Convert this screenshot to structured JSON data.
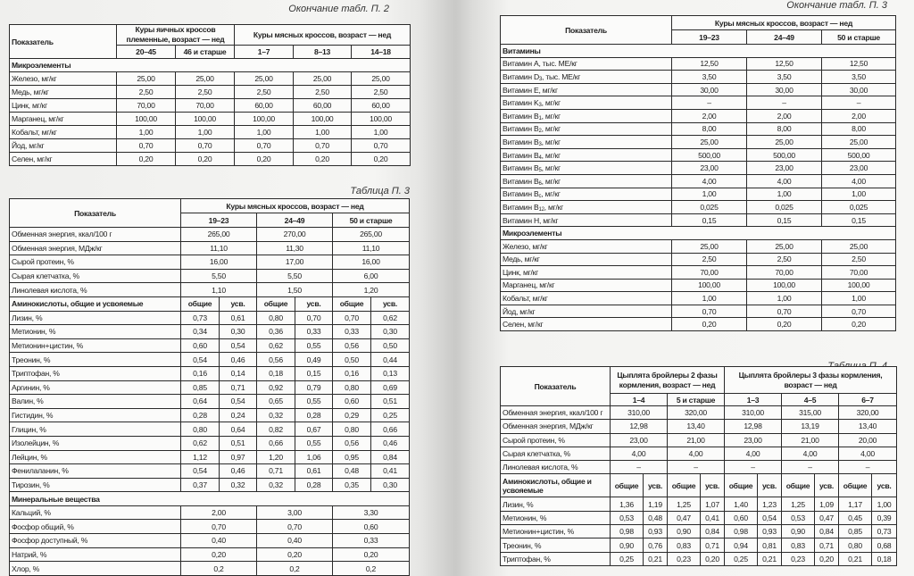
{
  "left_top": {
    "caption": "Окончание табл. П. 2",
    "header": {
      "col_label": "Показатель",
      "group1": "Куры яичных кроссов племенные, возраст — нед",
      "group2": "Куры мясных кроссов, возраст — нед",
      "ages": [
        "20–45",
        "46 и старше",
        "1–7",
        "8–13",
        "14–18"
      ]
    },
    "rows": [
      {
        "section": "Микроэлементы"
      },
      {
        "label": "Железо, мг/кг",
        "values": [
          "25,00",
          "25,00",
          "25,00",
          "25,00",
          "25,00"
        ]
      },
      {
        "label": "Медь, мг/кг",
        "values": [
          "2,50",
          "2,50",
          "2,50",
          "2,50",
          "2,50"
        ]
      },
      {
        "label": "Цинк, мг/кг",
        "values": [
          "70,00",
          "70,00",
          "60,00",
          "60,00",
          "60,00"
        ]
      },
      {
        "label": "Марганец, мг/кг",
        "values": [
          "100,00",
          "100,00",
          "100,00",
          "100,00",
          "100,00"
        ]
      },
      {
        "label": "Кобальт, мг/кг",
        "values": [
          "1,00",
          "1,00",
          "1,00",
          "1,00",
          "1,00"
        ]
      },
      {
        "label": "Йод, мг/кг",
        "values": [
          "0,70",
          "0,70",
          "0,70",
          "0,70",
          "0,70"
        ]
      },
      {
        "label": "Селен, мг/кг",
        "values": [
          "0,20",
          "0,20",
          "0,20",
          "0,20",
          "0,20"
        ]
      }
    ]
  },
  "left_bottom": {
    "caption": "Таблица П. 3",
    "header": {
      "col_label": "Показатель",
      "group": "Куры мясных кроссов, возраст — нед",
      "ages": [
        "19–23",
        "24–49",
        "50 и старше"
      ]
    },
    "rows": [
      {
        "label": "Обменная энергия, ккал/100 г",
        "values": [
          "265,00",
          "270,00",
          "265,00"
        ]
      },
      {
        "label": "Обменная энергия, МДж/кг",
        "values": [
          "11,10",
          "11,30",
          "11,10"
        ]
      },
      {
        "label": "Сырой протеин, %",
        "values": [
          "16,00",
          "17,00",
          "16,00"
        ]
      },
      {
        "label": "Сырая клетчатка, %",
        "values": [
          "5,50",
          "5,50",
          "6,00"
        ]
      },
      {
        "label": "Линолевая кислота, %",
        "values": [
          "1,10",
          "1,50",
          "1,20"
        ]
      },
      {
        "label": "Аминокислоты, общие и усвояемые",
        "bold": true,
        "values": [
          "общие",
          "усв.",
          "общие",
          "усв.",
          "общие",
          "усв."
        ]
      },
      {
        "label": "Лизин, %",
        "values": [
          "0,73",
          "0,61",
          "0,80",
          "0,70",
          "0,70",
          "0,62"
        ]
      },
      {
        "label": "Метионин, %",
        "values": [
          "0,34",
          "0,30",
          "0,36",
          "0,33",
          "0,33",
          "0,30"
        ]
      },
      {
        "label": "Метионин+цистин, %",
        "values": [
          "0,60",
          "0,54",
          "0,62",
          "0,55",
          "0,56",
          "0,50"
        ]
      },
      {
        "label": "Треонин, %",
        "values": [
          "0,54",
          "0,46",
          "0,56",
          "0,49",
          "0,50",
          "0,44"
        ]
      },
      {
        "label": "Триптофан, %",
        "values": [
          "0,16",
          "0,14",
          "0,18",
          "0,15",
          "0,16",
          "0,13"
        ]
      },
      {
        "label": "Аргинин, %",
        "values": [
          "0,85",
          "0,71",
          "0,92",
          "0,79",
          "0,80",
          "0,69"
        ]
      },
      {
        "label": "Валин, %",
        "values": [
          "0,64",
          "0,54",
          "0,65",
          "0,55",
          "0,60",
          "0,51"
        ]
      },
      {
        "label": "Гистидин, %",
        "values": [
          "0,28",
          "0,24",
          "0,32",
          "0,28",
          "0,29",
          "0,25"
        ]
      },
      {
        "label": "Глицин, %",
        "values": [
          "0,80",
          "0,64",
          "0,82",
          "0,67",
          "0,80",
          "0,66"
        ]
      },
      {
        "label": "Изолейцин, %",
        "values": [
          "0,62",
          "0,51",
          "0,66",
          "0,55",
          "0,56",
          "0,46"
        ]
      },
      {
        "label": "Лейцин, %",
        "values": [
          "1,12",
          "0,97",
          "1,20",
          "1,06",
          "0,95",
          "0,84"
        ]
      },
      {
        "label": "Фенилаланин, %",
        "values": [
          "0,54",
          "0,46",
          "0,71",
          "0,61",
          "0,48",
          "0,41"
        ]
      },
      {
        "label": "Тирозин, %",
        "values": [
          "0,37",
          "0,32",
          "0,32",
          "0,28",
          "0,35",
          "0,30"
        ]
      },
      {
        "section": "Минеральные вещества"
      },
      {
        "label": "Кальций, %",
        "values": [
          "2,00",
          "3,00",
          "3,30"
        ]
      },
      {
        "label": "Фосфор общий, %",
        "values": [
          "0,70",
          "0,70",
          "0,60"
        ]
      },
      {
        "label": "Фосфор доступный, %",
        "values": [
          "0,40",
          "0,40",
          "0,33"
        ]
      },
      {
        "label": "Натрий, %",
        "values": [
          "0,20",
          "0,20",
          "0,20"
        ]
      },
      {
        "label": "Хлор, %",
        "values": [
          "0,2",
          "0,2",
          "0,2"
        ]
      }
    ]
  },
  "right_top": {
    "caption": "Окончание табл. П. 3",
    "header": {
      "col_label": "Показатель",
      "group": "Куры мясных кроссов, возраст — нед",
      "ages": [
        "19–23",
        "24–49",
        "50 и старше"
      ]
    },
    "rows": [
      {
        "section": "Витамины"
      },
      {
        "label": "Витамин A, тыс. МЕ/кг",
        "values": [
          "12,50",
          "12,50",
          "12,50"
        ]
      },
      {
        "label": "Витамин D",
        "sub": "3",
        "rest": ", тыс. МЕ/кг",
        "values": [
          "3,50",
          "3,50",
          "3,50"
        ]
      },
      {
        "label": "Витамин E, мг/кг",
        "values": [
          "30,00",
          "30,00",
          "30,00"
        ]
      },
      {
        "label": "Витамин K",
        "sub": "3",
        "rest": ", мг/кг",
        "values": [
          "–",
          "–",
          "–"
        ]
      },
      {
        "label": "Витамин B",
        "sub": "1",
        "rest": ", мг/кг",
        "values": [
          "2,00",
          "2,00",
          "2,00"
        ]
      },
      {
        "label": "Витамин B",
        "sub": "2",
        "rest": ", мг/кг",
        "values": [
          "8,00",
          "8,00",
          "8,00"
        ]
      },
      {
        "label": "Витамин B",
        "sub": "3",
        "rest": ", мг/кг",
        "values": [
          "25,00",
          "25,00",
          "25,00"
        ]
      },
      {
        "label": "Витамин B",
        "sub": "4",
        "rest": ", мг/кг",
        "values": [
          "500,00",
          "500,00",
          "500,00"
        ]
      },
      {
        "label": "Витамин B",
        "sub": "5",
        "rest": ", мг/кг",
        "values": [
          "23,00",
          "23,00",
          "23,00"
        ]
      },
      {
        "label": "Витамин B",
        "sub": "6",
        "rest": ", мг/кг",
        "values": [
          "4,00",
          "4,00",
          "4,00"
        ]
      },
      {
        "label": "Витамин B",
        "sub": "c",
        "rest": ", мг/кг",
        "values": [
          "1,00",
          "1,00",
          "1,00"
        ]
      },
      {
        "label": "Витамин B",
        "sub": "12",
        "rest": ", мг/кг",
        "values": [
          "0,025",
          "0,025",
          "0,025"
        ]
      },
      {
        "label": "Витамин H, мг/кг",
        "values": [
          "0,15",
          "0,15",
          "0,15"
        ]
      },
      {
        "section": "Микроэлементы"
      },
      {
        "label": "Железо, мг/кг",
        "values": [
          "25,00",
          "25,00",
          "25,00"
        ]
      },
      {
        "label": "Медь, мг/кг",
        "values": [
          "2,50",
          "2,50",
          "2,50"
        ]
      },
      {
        "label": "Цинк, мг/кг",
        "values": [
          "70,00",
          "70,00",
          "70,00"
        ]
      },
      {
        "label": "Марганец, мг/кг",
        "values": [
          "100,00",
          "100,00",
          "100,00"
        ]
      },
      {
        "label": "Кобальт, мг/кг",
        "values": [
          "1,00",
          "1,00",
          "1,00"
        ]
      },
      {
        "label": "Йод, мг/кг",
        "values": [
          "0,70",
          "0,70",
          "0,70"
        ]
      },
      {
        "label": "Селен, мг/кг",
        "values": [
          "0,20",
          "0,20",
          "0,20"
        ]
      }
    ]
  },
  "right_bottom": {
    "caption": "Таблица П. 4",
    "header": {
      "col_label": "Показатель",
      "group1": "Цыплята бройлеры 2 фазы кормления, возраст — нед",
      "group2": "Цыплята бройлеры 3 фазы кормления, возраст — нед",
      "ages": [
        "1–4",
        "5 и старше",
        "1–3",
        "4–5",
        "6–7"
      ]
    },
    "rows": [
      {
        "label": "Обменная энергия, ккал/100 г",
        "values": [
          "310,00",
          "320,00",
          "310,00",
          "315,00",
          "320,00"
        ]
      },
      {
        "label": "Обменная энергия, МДж/кг",
        "values": [
          "12,98",
          "13,40",
          "12,98",
          "13,19",
          "13,40"
        ]
      },
      {
        "label": "Сырой протеин, %",
        "values": [
          "23,00",
          "21,00",
          "23,00",
          "21,00",
          "20,00"
        ]
      },
      {
        "label": "Сырая клетчатка, %",
        "values": [
          "4,00",
          "4,00",
          "4,00",
          "4,00",
          "4,00"
        ]
      },
      {
        "label": "Линолевая кислота, %",
        "values": [
          "–",
          "–",
          "–",
          "–",
          "–"
        ]
      },
      {
        "label": "Аминокислоты, общие и усвояемые",
        "bold": true,
        "wrap": true,
        "values": [
          "общие",
          "усв.",
          "общие",
          "усв.",
          "общие",
          "усв.",
          "общие",
          "усв.",
          "общие",
          "усв."
        ]
      },
      {
        "label": "Лизин, %",
        "values": [
          "1,36",
          "1,19",
          "1,25",
          "1,07",
          "1,40",
          "1,23",
          "1,25",
          "1,09",
          "1,17",
          "1,00"
        ]
      },
      {
        "label": "Метионин, %",
        "values": [
          "0,53",
          "0,48",
          "0,47",
          "0,41",
          "0,60",
          "0,54",
          "0,53",
          "0,47",
          "0,45",
          "0,39"
        ]
      },
      {
        "label": "Метионин+цистин, %",
        "values": [
          "0,98",
          "0,93",
          "0,90",
          "0,84",
          "0,98",
          "0,93",
          "0,90",
          "0,84",
          "0,85",
          "0,73"
        ]
      },
      {
        "label": "Треонин, %",
        "values": [
          "0,90",
          "0,76",
          "0,83",
          "0,71",
          "0,94",
          "0,81",
          "0,83",
          "0,71",
          "0,80",
          "0,68"
        ]
      },
      {
        "label": "Триптофан, %",
        "values": [
          "0,25",
          "0,21",
          "0,23",
          "0,20",
          "0,25",
          "0,21",
          "0,23",
          "0,20",
          "0,21",
          "0,18"
        ]
      }
    ]
  }
}
